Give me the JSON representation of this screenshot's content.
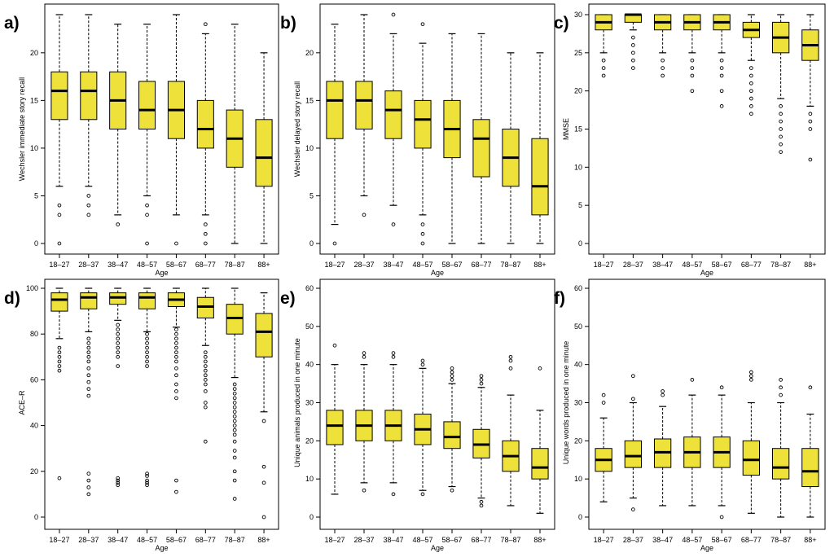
{
  "figure": {
    "box_color": "#ede13a",
    "box_stroke": "#000000",
    "x_axis_title": "Age",
    "categories": [
      "18–27",
      "28–37",
      "38–47",
      "48–57",
      "58–67",
      "68–77",
      "78–87",
      "88+"
    ]
  },
  "chart_data": [
    {
      "id": "a",
      "panel_label": "a)",
      "type": "boxplot",
      "ylabel": "Wechsler immediate story recall",
      "ylim": [
        0,
        24
      ],
      "yticks": [
        0,
        5,
        10,
        15,
        20
      ],
      "boxes": [
        {
          "wlo": 6,
          "q1": 13,
          "med": 16,
          "q3": 18,
          "whi": 24,
          "outliers": [
            0,
            3,
            4
          ]
        },
        {
          "wlo": 6,
          "q1": 13,
          "med": 16,
          "q3": 18,
          "whi": 24,
          "outliers": [
            3,
            4,
            5
          ]
        },
        {
          "wlo": 3,
          "q1": 12,
          "med": 15,
          "q3": 18,
          "whi": 23,
          "outliers": [
            2
          ]
        },
        {
          "wlo": 5,
          "q1": 12,
          "med": 14,
          "q3": 17,
          "whi": 23,
          "outliers": [
            0,
            3,
            4
          ]
        },
        {
          "wlo": 3,
          "q1": 11,
          "med": 14,
          "q3": 17,
          "whi": 24,
          "outliers": [
            0
          ]
        },
        {
          "wlo": 3,
          "q1": 10,
          "med": 12,
          "q3": 15,
          "whi": 22,
          "outliers": [
            0,
            1,
            2,
            23
          ]
        },
        {
          "wlo": 0,
          "q1": 8,
          "med": 11,
          "q3": 14,
          "whi": 23,
          "outliers": []
        },
        {
          "wlo": 0,
          "q1": 6,
          "med": 9,
          "q3": 13,
          "whi": 20,
          "outliers": []
        }
      ]
    },
    {
      "id": "b",
      "panel_label": "b)",
      "type": "boxplot",
      "ylabel": "Wechsler delayed story recall",
      "ylim": [
        0,
        24
      ],
      "yticks": [
        0,
        5,
        10,
        15,
        20
      ],
      "boxes": [
        {
          "wlo": 2,
          "q1": 11,
          "med": 15,
          "q3": 17,
          "whi": 23,
          "outliers": [
            0
          ]
        },
        {
          "wlo": 5,
          "q1": 12,
          "med": 15,
          "q3": 17,
          "whi": 24,
          "outliers": [
            3
          ]
        },
        {
          "wlo": 4,
          "q1": 11,
          "med": 14,
          "q3": 16,
          "whi": 22,
          "outliers": [
            2,
            24
          ]
        },
        {
          "wlo": 3,
          "q1": 10,
          "med": 13,
          "q3": 15,
          "whi": 21,
          "outliers": [
            0,
            1,
            2,
            23
          ]
        },
        {
          "wlo": 0,
          "q1": 9,
          "med": 12,
          "q3": 15,
          "whi": 22,
          "outliers": []
        },
        {
          "wlo": 0,
          "q1": 7,
          "med": 11,
          "q3": 13,
          "whi": 22,
          "outliers": []
        },
        {
          "wlo": 0,
          "q1": 6,
          "med": 9,
          "q3": 12,
          "whi": 20,
          "outliers": []
        },
        {
          "wlo": 0,
          "q1": 3,
          "med": 6,
          "q3": 11,
          "whi": 20,
          "outliers": []
        }
      ]
    },
    {
      "id": "c",
      "panel_label": "c)",
      "type": "boxplot",
      "ylabel": "MMSE",
      "ylim": [
        0,
        30
      ],
      "yticks": [
        0,
        5,
        10,
        15,
        20,
        25,
        30
      ],
      "boxes": [
        {
          "wlo": 25,
          "q1": 28,
          "med": 29,
          "q3": 30,
          "whi": 30,
          "outliers": [
            22,
            23,
            24
          ]
        },
        {
          "wlo": 28,
          "q1": 29,
          "med": 30,
          "q3": 30,
          "whi": 30,
          "outliers": [
            23,
            24,
            25,
            26,
            27
          ]
        },
        {
          "wlo": 25,
          "q1": 28,
          "med": 29,
          "q3": 30,
          "whi": 30,
          "outliers": [
            22,
            23,
            24
          ]
        },
        {
          "wlo": 25,
          "q1": 28,
          "med": 29,
          "q3": 30,
          "whi": 30,
          "outliers": [
            20,
            22,
            23,
            24
          ]
        },
        {
          "wlo": 25,
          "q1": 28,
          "med": 29,
          "q3": 30,
          "whi": 30,
          "outliers": [
            18,
            20,
            22,
            23,
            24
          ]
        },
        {
          "wlo": 24,
          "q1": 27,
          "med": 28,
          "q3": 29,
          "whi": 30,
          "outliers": [
            17,
            18,
            19,
            20,
            21,
            22,
            23
          ]
        },
        {
          "wlo": 19,
          "q1": 25,
          "med": 27,
          "q3": 29,
          "whi": 30,
          "outliers": [
            12,
            13,
            14,
            15,
            16,
            17,
            18
          ]
        },
        {
          "wlo": 18,
          "q1": 24,
          "med": 26,
          "q3": 28,
          "whi": 30,
          "outliers": [
            11,
            15,
            16,
            17
          ]
        }
      ]
    },
    {
      "id": "d",
      "panel_label": "d)",
      "type": "boxplot",
      "ylabel": "ACE–R",
      "ylim": [
        0,
        100
      ],
      "yticks": [
        0,
        20,
        40,
        60,
        80,
        100
      ],
      "boxes": [
        {
          "wlo": 78,
          "q1": 90,
          "med": 95,
          "q3": 98,
          "whi": 100,
          "outliers": [
            17,
            64,
            66,
            68,
            70,
            72,
            74
          ]
        },
        {
          "wlo": 81,
          "q1": 91,
          "med": 96,
          "q3": 98,
          "whi": 100,
          "outliers": [
            10,
            13,
            16,
            19,
            53,
            56,
            59,
            62,
            65,
            68,
            70,
            72,
            74,
            76,
            78
          ]
        },
        {
          "wlo": 86,
          "q1": 93,
          "med": 96,
          "q3": 98,
          "whi": 100,
          "outliers": [
            14,
            15,
            16,
            17,
            66,
            70,
            72,
            74,
            76,
            78,
            80,
            82,
            84
          ]
        },
        {
          "wlo": 81,
          "q1": 91,
          "med": 96,
          "q3": 98,
          "whi": 100,
          "outliers": [
            14,
            15,
            16,
            18,
            19,
            66,
            68,
            70,
            72,
            74,
            76,
            78,
            80
          ]
        },
        {
          "wlo": 83,
          "q1": 92,
          "med": 95,
          "q3": 98,
          "whi": 100,
          "outliers": [
            11,
            16,
            52,
            55,
            58,
            62,
            65,
            68,
            70,
            72,
            74,
            76,
            78,
            80,
            82
          ]
        },
        {
          "wlo": 75,
          "q1": 87,
          "med": 92,
          "q3": 96,
          "whi": 100,
          "outliers": [
            33,
            48,
            50,
            55,
            58,
            60,
            62,
            64,
            66,
            68,
            70,
            72
          ]
        },
        {
          "wlo": 61,
          "q1": 80,
          "med": 87,
          "q3": 93,
          "whi": 100,
          "outliers": [
            8,
            16,
            20,
            26,
            29,
            33,
            36,
            38,
            40,
            42,
            44,
            46,
            48,
            50,
            52,
            54,
            56,
            58
          ]
        },
        {
          "wlo": 46,
          "q1": 70,
          "med": 81,
          "q3": 89,
          "whi": 98,
          "outliers": [
            0,
            15,
            22,
            42
          ]
        }
      ]
    },
    {
      "id": "e",
      "panel_label": "e)",
      "type": "boxplot",
      "ylabel": "Unique animals produced in one minute",
      "ylim": [
        0,
        60
      ],
      "yticks": [
        0,
        10,
        20,
        30,
        40,
        50,
        60
      ],
      "boxes": [
        {
          "wlo": 6,
          "q1": 19,
          "med": 24,
          "q3": 28,
          "whi": 40,
          "outliers": [
            45
          ]
        },
        {
          "wlo": 9,
          "q1": 20,
          "med": 24,
          "q3": 28,
          "whi": 40,
          "outliers": [
            7,
            42,
            43
          ]
        },
        {
          "wlo": 9,
          "q1": 20,
          "med": 24,
          "q3": 28,
          "whi": 40,
          "outliers": [
            6,
            42,
            43
          ]
        },
        {
          "wlo": 7,
          "q1": 19,
          "med": 23,
          "q3": 27,
          "whi": 39,
          "outliers": [
            6,
            40,
            41
          ]
        },
        {
          "wlo": 8,
          "q1": 18,
          "med": 21,
          "q3": 25,
          "whi": 35,
          "outliers": [
            7,
            36,
            37,
            38,
            39
          ]
        },
        {
          "wlo": 5,
          "q1": 15.5,
          "med": 19,
          "q3": 23,
          "whi": 34,
          "outliers": [
            3,
            4,
            35,
            36,
            37
          ]
        },
        {
          "wlo": 3,
          "q1": 12,
          "med": 16,
          "q3": 20,
          "whi": 32,
          "outliers": [
            39,
            41,
            42
          ]
        },
        {
          "wlo": 1,
          "q1": 10,
          "med": 13,
          "q3": 18,
          "whi": 28,
          "outliers": [
            39
          ]
        }
      ]
    },
    {
      "id": "f",
      "panel_label": "f)",
      "type": "boxplot",
      "ylabel": "Unique words produced in one minute",
      "ylim": [
        0,
        60
      ],
      "yticks": [
        0,
        10,
        20,
        30,
        40,
        50,
        60
      ],
      "boxes": [
        {
          "wlo": 4,
          "q1": 12,
          "med": 15,
          "q3": 18,
          "whi": 26,
          "outliers": [
            30,
            32
          ]
        },
        {
          "wlo": 5,
          "q1": 13,
          "med": 16,
          "q3": 20,
          "whi": 30,
          "outliers": [
            2,
            31,
            37
          ]
        },
        {
          "wlo": 3,
          "q1": 13,
          "med": 17,
          "q3": 20.5,
          "whi": 29,
          "outliers": [
            32,
            33
          ]
        },
        {
          "wlo": 3,
          "q1": 13,
          "med": 17,
          "q3": 21,
          "whi": 32,
          "outliers": [
            36
          ]
        },
        {
          "wlo": 3,
          "q1": 13,
          "med": 17,
          "q3": 21,
          "whi": 32,
          "outliers": [
            0,
            34
          ]
        },
        {
          "wlo": 1,
          "q1": 11,
          "med": 15,
          "q3": 20,
          "whi": 30,
          "outliers": [
            36,
            37,
            38
          ]
        },
        {
          "wlo": 0,
          "q1": 10,
          "med": 13,
          "q3": 18,
          "whi": 30,
          "outliers": [
            32,
            34,
            36
          ]
        },
        {
          "wlo": 0,
          "q1": 8,
          "med": 12,
          "q3": 18,
          "whi": 27,
          "outliers": [
            34
          ]
        }
      ]
    }
  ]
}
